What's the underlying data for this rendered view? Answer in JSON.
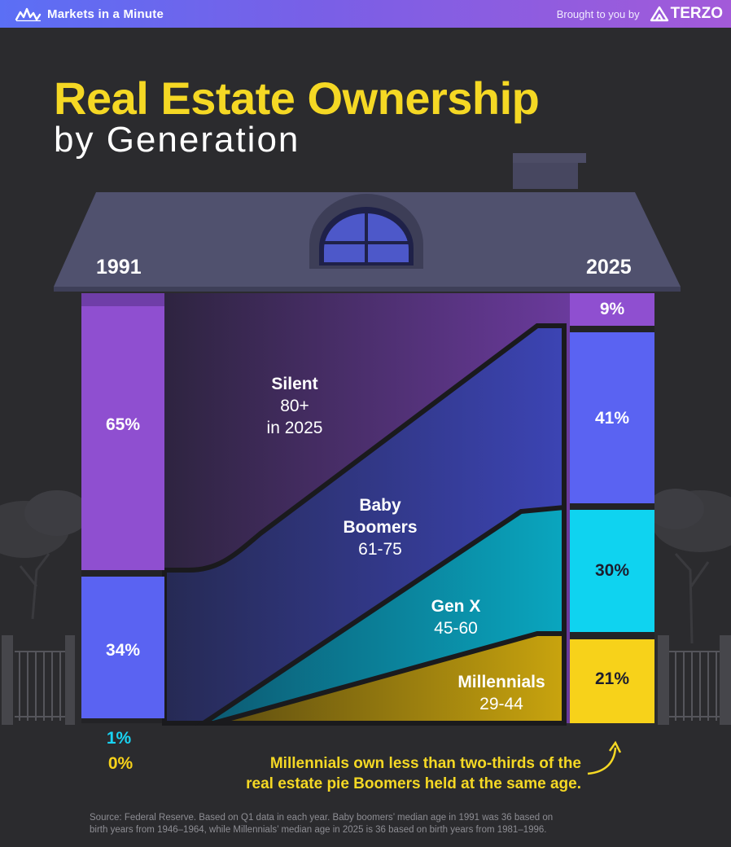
{
  "header": {
    "brand": "Markets in a Minute",
    "sponsor_label": "Brought to you by",
    "sponsor_name": "TERZO"
  },
  "title": "Real Estate Ownership",
  "subtitle": "by Generation",
  "colors": {
    "silent": "#8f4fd0",
    "boomers": "#5a63f2",
    "genx": "#0fd3f0",
    "millennials": "#f7d21a",
    "title": "#f5d824",
    "background": "#2b2b2e"
  },
  "chart_data": {
    "type": "bar",
    "categories": [
      "1991",
      "2025"
    ],
    "series": [
      {
        "name": "Silent",
        "values": [
          65,
          9
        ],
        "labels": [
          "65%",
          "9%"
        ]
      },
      {
        "name": "Baby Boomers",
        "values": [
          34,
          41
        ],
        "labels": [
          "34%",
          "41%"
        ]
      },
      {
        "name": "Gen X",
        "values": [
          1,
          30
        ],
        "labels": [
          "1%",
          "30%"
        ]
      },
      {
        "name": "Millennials",
        "values": [
          0,
          21
        ],
        "labels": [
          "0%",
          "21%"
        ]
      }
    ],
    "flow_labels": [
      {
        "name": "Silent",
        "detail1": "80+",
        "detail2": "in 2025"
      },
      {
        "name": "Baby",
        "name2": "Boomers",
        "detail1": "61-75"
      },
      {
        "name": "Gen X",
        "detail1": "45-60"
      },
      {
        "name": "Millennials",
        "detail1": "29-44"
      }
    ]
  },
  "note": {
    "line1": "Millennials own less than two-thirds of the",
    "line2": "real estate pie Boomers held at the same age."
  },
  "source": {
    "line1": "Source: Federal Reserve. Based on Q1 data in each year. Baby boomers’ median age in 1991 was 36 based on",
    "line2": "birth years from 1946–1964, while Millennials’ median age in 2025 is 36 based on birth years from 1981–1996."
  }
}
